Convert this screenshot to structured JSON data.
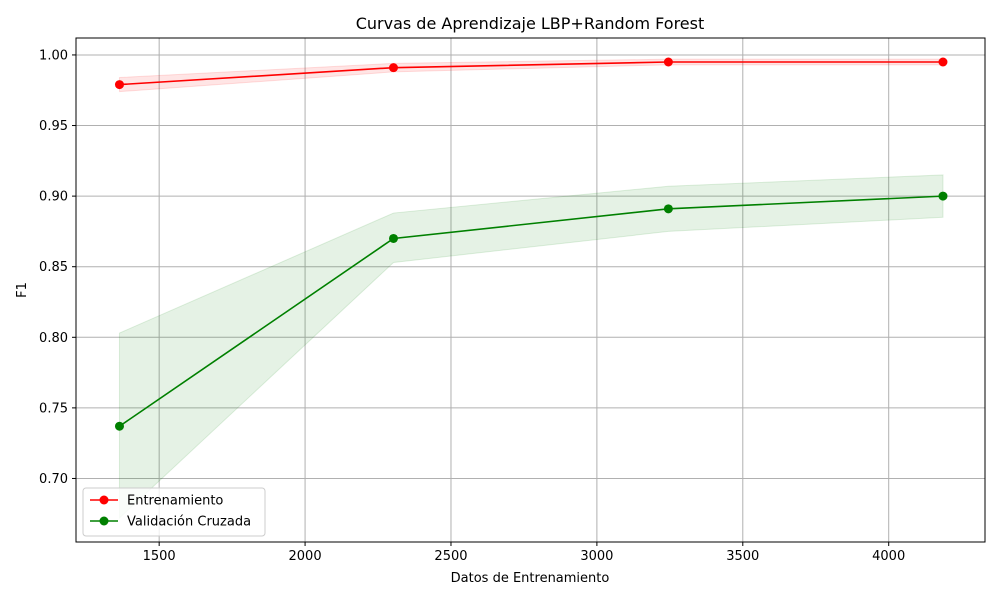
{
  "chart_data": {
    "type": "line",
    "title": "Curvas de Aprendizaje LBP+Random Forest",
    "xlabel": "Datos de Entrenamiento",
    "ylabel": "F1",
    "xlim": [
      1215,
      4330
    ],
    "ylim": [
      0.655,
      1.012
    ],
    "xticks": [
      1500,
      2000,
      2500,
      3000,
      3500,
      4000
    ],
    "yticks": [
      0.7,
      0.75,
      0.8,
      0.85,
      0.9,
      0.95,
      1.0
    ],
    "xtick_labels": [
      "1500",
      "2000",
      "2500",
      "3000",
      "3500",
      "4000"
    ],
    "ytick_labels": [
      "0.70",
      "0.75",
      "0.80",
      "0.85",
      "0.90",
      "0.95",
      "1.00"
    ],
    "grid": true,
    "legend_position": "lower-left",
    "x": [
      1364,
      2303,
      3245,
      4186
    ],
    "series": [
      {
        "name": "Entrenamiento",
        "color": "#ff0000",
        "band_color": "#ff0000",
        "values": [
          0.979,
          0.991,
          0.995,
          0.995
        ],
        "lower": [
          0.974,
          0.988,
          0.993,
          0.993
        ],
        "upper": [
          0.984,
          0.994,
          0.997,
          0.997
        ]
      },
      {
        "name": "Validación Cruzada",
        "color": "#008000",
        "band_color": "#008000",
        "values": [
          0.737,
          0.87,
          0.891,
          0.9
        ],
        "lower": [
          0.672,
          0.853,
          0.875,
          0.885
        ],
        "upper": [
          0.803,
          0.888,
          0.907,
          0.915
        ]
      }
    ]
  }
}
